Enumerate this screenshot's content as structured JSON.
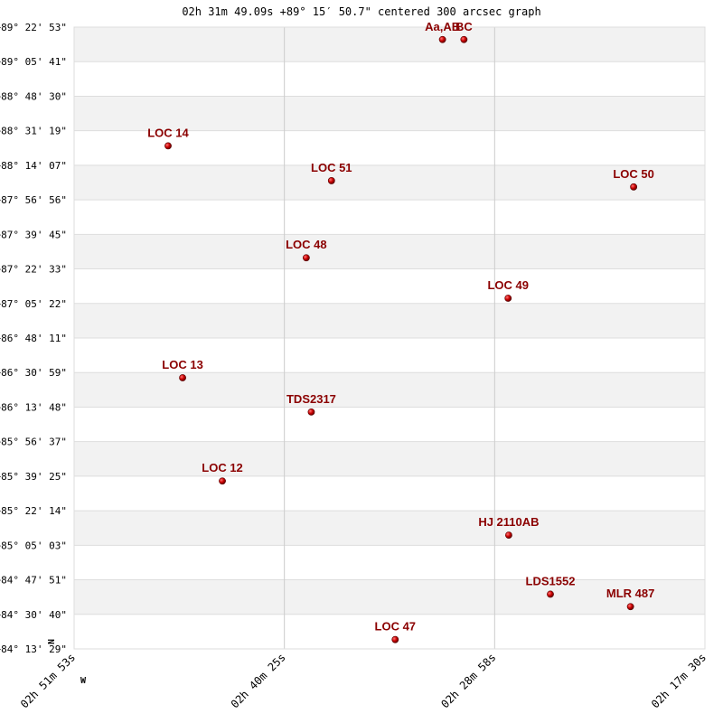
{
  "chart_data": {
    "type": "scatter",
    "title": "02h 31m 49.09s +89° 15′ 50.7\" centered 300 arcsec graph",
    "x_axis": {
      "ticks": [
        "02h 51m 53s",
        "02h 40m 25s",
        "02h 28m 58s",
        "02h 17m 30s"
      ],
      "direction_label": "W"
    },
    "y_axis": {
      "ticks": [
        "+89° 22' 53\"",
        "+89° 05' 41\"",
        "+88° 48' 30\"",
        "+88° 31' 19\"",
        "+88° 14' 07\"",
        "+87° 56' 56\"",
        "+87° 39' 45\"",
        "+87° 22' 33\"",
        "+87° 05' 22\"",
        "+86° 48' 11\"",
        "+86° 30' 59\"",
        "+86° 13' 48\"",
        "+85° 56' 37\"",
        "+85° 39' 25\"",
        "+85° 22' 14\"",
        "+85° 05' 03\"",
        "+84° 47' 51\"",
        "+84° 30' 40\"",
        "+84° 13' 29\""
      ],
      "direction_label": "N"
    },
    "grid": true,
    "marker_color": "#cc0000",
    "label_color": "#8b0000",
    "points": [
      {
        "label": "Aa,AB",
        "x": 0.584,
        "y": 0.98,
        "show_label": true
      },
      {
        "label": "BC",
        "x": 0.618,
        "y": 0.98,
        "show_label": true
      },
      {
        "label": "LOC 14",
        "x": 0.149,
        "y": 0.809,
        "show_label": true
      },
      {
        "label": "LOC 51",
        "x": 0.408,
        "y": 0.753,
        "show_label": true
      },
      {
        "label": "LOC 50",
        "x": 0.887,
        "y": 0.743,
        "show_label": true
      },
      {
        "label": "LOC 48",
        "x": 0.368,
        "y": 0.629,
        "show_label": true
      },
      {
        "label": "LOC 49",
        "x": 0.688,
        "y": 0.564,
        "show_label": true
      },
      {
        "label": "LOC 13",
        "x": 0.172,
        "y": 0.436,
        "show_label": true
      },
      {
        "label": "TDS2317",
        "x": 0.376,
        "y": 0.381,
        "show_label": true
      },
      {
        "label": "LOC 12",
        "x": 0.235,
        "y": 0.27,
        "show_label": true
      },
      {
        "label": "HJ 2110AB",
        "x": 0.689,
        "y": 0.183,
        "show_label": true
      },
      {
        "label": "LDS1552",
        "x": 0.755,
        "y": 0.088,
        "show_label": true
      },
      {
        "label": "MLR 487",
        "x": 0.882,
        "y": 0.068,
        "show_label": true
      },
      {
        "label": "LOC 47",
        "x": 0.509,
        "y": 0.015,
        "show_label": true
      }
    ]
  }
}
